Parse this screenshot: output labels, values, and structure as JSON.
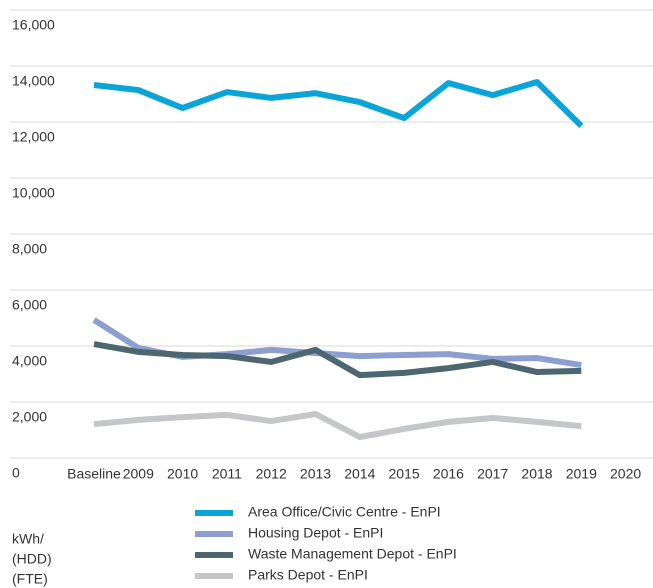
{
  "chart_data": {
    "type": "line",
    "y_label": [
      "kWh/",
      "(HDD)",
      "(FTE)"
    ],
    "categories": [
      "Baseline",
      "2009",
      "2010",
      "2011",
      "2012",
      "2013",
      "2014",
      "2015",
      "2016",
      "2017",
      "2018",
      "2019",
      "2020"
    ],
    "series": [
      {
        "name": "Area Office/Civic Centre - EnPI",
        "color": "#0aa5d6",
        "values": [
          13320,
          13140,
          12500,
          13070,
          12860,
          13030,
          12710,
          12140,
          13390,
          12960,
          13430,
          11860,
          null
        ]
      },
      {
        "name": "Housing Depot - EnPI",
        "color": "#8c9fcf",
        "values": [
          4930,
          3930,
          3610,
          3710,
          3860,
          3750,
          3640,
          3680,
          3710,
          3540,
          3570,
          3320,
          null
        ]
      },
      {
        "name": "Waste Management Depot - EnPI",
        "color": "#4d6670",
        "values": [
          4070,
          3790,
          3680,
          3640,
          3430,
          3860,
          2960,
          3040,
          3210,
          3430,
          3070,
          3110,
          null
        ]
      },
      {
        "name": "Parks Depot - EnPI",
        "color": "#c4c6c8",
        "values": [
          1210,
          1360,
          1460,
          1540,
          1320,
          1570,
          750,
          1040,
          1290,
          1430,
          1290,
          1140,
          null
        ]
      }
    ],
    "ylim": [
      0,
      16000
    ],
    "yticks": [
      0,
      {
        "value": 2000,
        "label": "2,000"
      },
      {
        "value": 4000,
        "label": "4,000"
      },
      {
        "value": 6000,
        "label": "6,000"
      },
      {
        "value": 8000,
        "label": "8,000"
      },
      {
        "value": 10000,
        "label": "10,000"
      },
      {
        "value": 12000,
        "label": "12,000"
      },
      {
        "value": 14000,
        "label": "14,000"
      },
      {
        "value": 16000,
        "label": "16,000"
      }
    ],
    "grid": true
  }
}
